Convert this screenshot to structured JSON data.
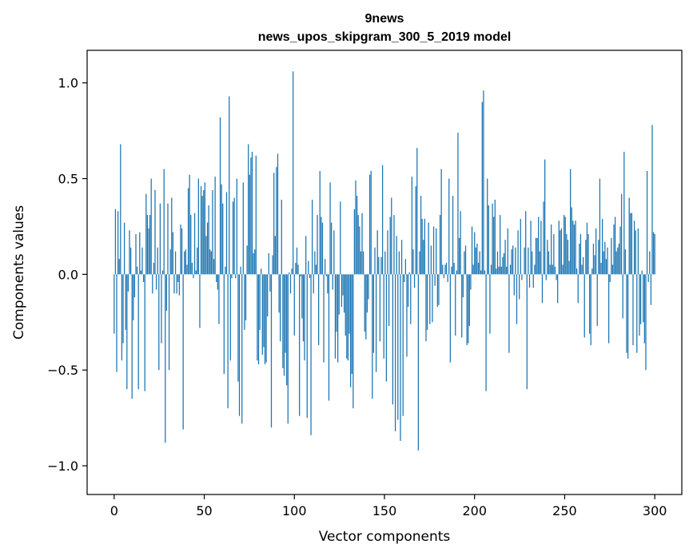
{
  "chart_data": {
    "type": "bar",
    "title": "9news",
    "subtitle": "news_upos_skipgram_300_5_2019 model",
    "xlabel": "Vector components",
    "ylabel": "Components values",
    "xlim": [
      -15,
      315
    ],
    "ylim": [
      -1.15,
      1.17
    ],
    "xticks": [
      0,
      50,
      100,
      150,
      200,
      250,
      300
    ],
    "xtick_labels": [
      "0",
      "50",
      "100",
      "150",
      "200",
      "250",
      "300"
    ],
    "yticks": [
      -1.0,
      -0.5,
      0.0,
      0.5,
      1.0
    ],
    "ytick_labels": [
      "−1.0",
      "−0.5",
      "0.0",
      "0.5",
      "1.0"
    ],
    "grid": false,
    "bar_color": "#1f77b4",
    "series": [
      {
        "values": [
          -0.31,
          0.34,
          -0.51,
          0.33,
          0.08,
          0.68,
          -0.45,
          -0.36,
          0.27,
          -0.29,
          -0.6,
          -0.09,
          0.23,
          0.14,
          -0.65,
          -0.24,
          -0.12,
          0.21,
          0.04,
          -0.6,
          0.22,
          0.02,
          0.14,
          -0.04,
          -0.61,
          0.42,
          0.31,
          0.24,
          0.31,
          0.5,
          -0.1,
          0.06,
          0.44,
          -0.08,
          0.14,
          -0.5,
          0.37,
          -0.36,
          0.02,
          0.55,
          -0.88,
          -0.19,
          0.37,
          -0.5,
          0.13,
          0.4,
          0.22,
          -0.1,
          0.12,
          -0.1,
          -0.04,
          -0.11,
          0.26,
          0.24,
          -0.81,
          0.12,
          0.13,
          0.05,
          0.45,
          0.52,
          0.31,
          0.06,
          -0.02,
          0.32,
          0.02,
          0.14,
          0.5,
          -0.28,
          0.46,
          0.41,
          0.44,
          0.48,
          0.2,
          0.27,
          0.36,
          0.13,
          0.12,
          0.44,
          0.08,
          0.51,
          -0.04,
          -0.08,
          -0.26,
          0.82,
          0.47,
          0.37,
          -0.52,
          0.04,
          0.43,
          -0.7,
          0.93,
          -0.45,
          -0.02,
          0.38,
          0.4,
          -0.02,
          0.5,
          -0.56,
          -0.74,
          0.04,
          -0.78,
          0.48,
          -0.29,
          -0.24,
          0.15,
          0.68,
          0.52,
          0.61,
          0.64,
          0.11,
          0.13,
          0.62,
          -0.45,
          -0.47,
          -0.29,
          0.03,
          -0.42,
          -0.38,
          -0.47,
          -0.46,
          -0.22,
          0.11,
          -0.09,
          -0.8,
          0.1,
          0.53,
          0.2,
          0.56,
          0.63,
          -0.2,
          -0.35,
          0.39,
          -0.49,
          -0.53,
          -0.41,
          -0.58,
          -0.78,
          0.01,
          -0.1,
          0.03,
          1.06,
          -0.32,
          0.06,
          0.14,
          0.05,
          -0.74,
          -0.01,
          -0.23,
          -0.35,
          -0.45,
          0.2,
          -0.75,
          0.07,
          -0.02,
          -0.84,
          0.39,
          -0.1,
          0.12,
          0.05,
          0.31,
          -0.37,
          0.54,
          0.3,
          0.27,
          -0.46,
          0.08,
          -0.01,
          -0.1,
          -0.66,
          0.48,
          0.27,
          -0.08,
          0.23,
          -0.44,
          -0.3,
          -0.46,
          -0.21,
          0.38,
          -0.17,
          -0.11,
          -0.2,
          -0.32,
          -0.44,
          -0.45,
          -0.31,
          -0.59,
          -0.52,
          -0.7,
          0.34,
          0.49,
          0.41,
          0.31,
          0.25,
          0.12,
          0.32,
          0.12,
          -0.3,
          -0.34,
          -0.2,
          -0.13,
          0.52,
          0.54,
          -0.65,
          -0.41,
          0.14,
          -0.51,
          0.23,
          0.09,
          -0.35,
          0.09,
          0.57,
          -0.44,
          0.12,
          -0.56,
          0.23,
          -0.27,
          0.3,
          0.4,
          -0.68,
          0.31,
          -0.82,
          0.2,
          -0.76,
          0.12,
          -0.87,
          0.18,
          -0.74,
          -0.04,
          0.08,
          -0.43,
          -0.17,
          0.01,
          -0.26,
          0.51,
          0.13,
          -0.07,
          0.46,
          0.66,
          -0.92,
          0.12,
          0.41,
          0.29,
          0.18,
          0.29,
          -0.35,
          -0.29,
          0.27,
          -0.26,
          0.15,
          -0.25,
          0.25,
          -0.06,
          0.24,
          -0.17,
          -0.16,
          0.31,
          0.55,
          0.05,
          -0.02,
          0.05,
          0.06,
          -0.04,
          0.5,
          -0.46,
          0.04,
          0.41,
          0.06,
          -0.32,
          0.02,
          0.74,
          0.19,
          0.33,
          -0.33,
          -0.12,
          0.12,
          0.15,
          -0.37,
          -0.36,
          -0.27,
          -0.08,
          0.25,
          0.05,
          0.22,
          0.14,
          0.16,
          0.06,
          0.12,
          0.02,
          0.9,
          0.96,
          0.02,
          -0.61,
          0.5,
          0.36,
          -0.31,
          0.05,
          0.37,
          0.3,
          0.39,
          0.03,
          0.12,
          0.04,
          0.31,
          0.04,
          0.09,
          0.11,
          0.18,
          0.04,
          0.24,
          -0.41,
          0.05,
          0.13,
          0.15,
          -0.11,
          0.14,
          -0.26,
          0.23,
          -0.13,
          0.29,
          -0.03,
          0.0,
          0.14,
          0.33,
          -0.6,
          0.14,
          -0.07,
          0.28,
          0.12,
          -0.07,
          0.05,
          0.19,
          0.19,
          0.3,
          0.12,
          0.28,
          -0.15,
          0.38,
          0.6,
          -0.03,
          0.18,
          0.12,
          0.05,
          0.26,
          0.05,
          0.21,
          0.04,
          -0.03,
          -0.15,
          0.28,
          0.23,
          0.24,
          0.05,
          0.31,
          0.3,
          0.21,
          0.18,
          0.07,
          0.55,
          0.35,
          0.28,
          0.26,
          0.28,
          0.03,
          -0.15,
          0.16,
          0.21,
          0.05,
          0.09,
          -0.33,
          0.18,
          0.27,
          0.21,
          -0.31,
          -0.37,
          0.03,
          0.16,
          0.1,
          0.24,
          -0.27,
          0.18,
          0.5,
          0.06,
          0.29,
          0.12,
          0.17,
          0.08,
          0.14,
          -0.36,
          -0.04,
          0.19,
          0.05,
          0.26,
          0.3,
          0.12,
          0.14,
          0.16,
          0.25,
          0.42,
          -0.23,
          0.64,
          0.13,
          -0.41,
          -0.44,
          0.4,
          0.32,
          0.32,
          -0.37,
          0.28,
          0.23,
          -0.41,
          0.24,
          -0.32,
          -0.26,
          0.02,
          -0.25,
          -0.36,
          -0.5,
          0.54,
          -0.04,
          0.12,
          -0.16,
          0.78,
          0.22,
          0.21
        ]
      }
    ]
  }
}
